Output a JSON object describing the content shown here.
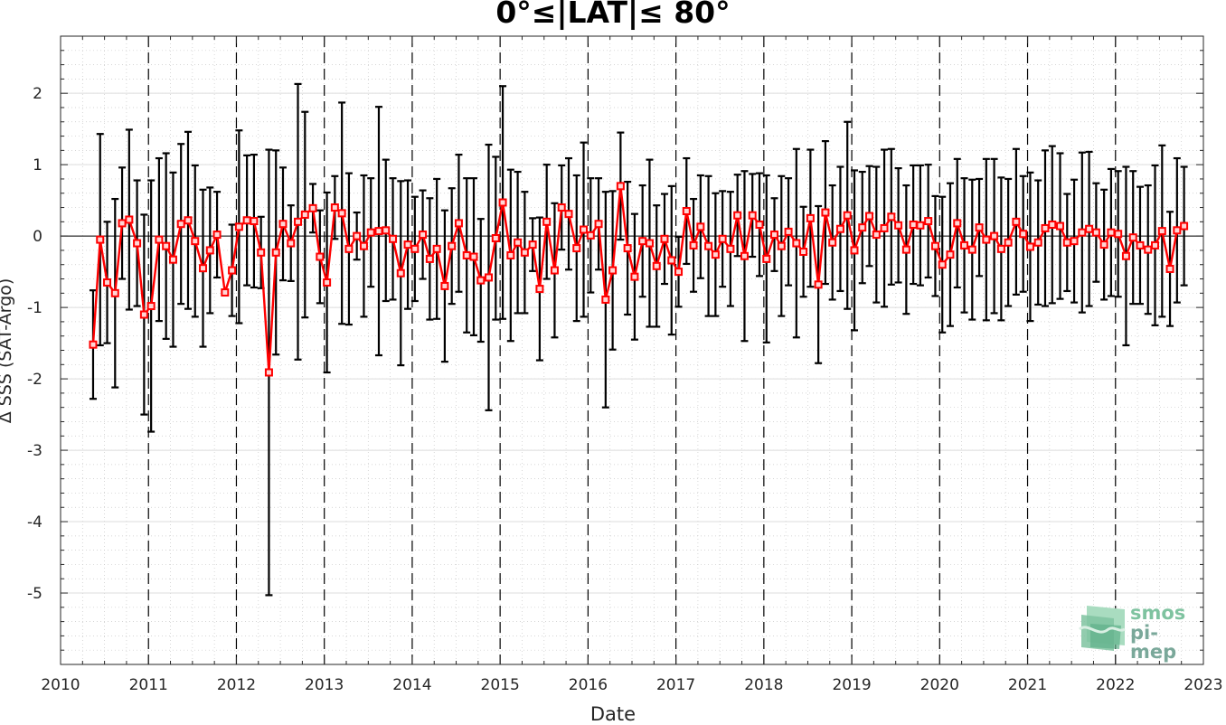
{
  "chart_data": {
    "type": "line",
    "title": "0°≤|LAT|≤ 80°",
    "xlabel": "Date",
    "ylabel": "Δ SSS (SAT-Argo)",
    "xlim": [
      2010,
      2023
    ],
    "ylim": [
      -6,
      2.8
    ],
    "xticks": [
      "2010",
      "2011",
      "2012",
      "2013",
      "2014",
      "2015",
      "2016",
      "2017",
      "2018",
      "2019",
      "2020",
      "2021",
      "2022",
      "2023"
    ],
    "yticks": [
      "2",
      "1",
      "0",
      "-1",
      "-2",
      "-3",
      "-4",
      "-5"
    ],
    "ytick_values": [
      2,
      1,
      0,
      -1,
      -2,
      -3,
      -4,
      -5
    ],
    "grid": "on",
    "year_lines": "dashed",
    "series": [
      {
        "color": "#ff0000",
        "marker": "square",
        "errorbar_color": "#000000",
        "x": [
          2010.37,
          2010.45,
          2010.53,
          2010.62,
          2010.7,
          2010.78,
          2010.87,
          2010.95,
          2011.03,
          2011.12,
          2011.2,
          2011.28,
          2011.37,
          2011.45,
          2011.53,
          2011.62,
          2011.7,
          2011.78,
          2011.87,
          2011.95,
          2012.03,
          2012.12,
          2012.2,
          2012.28,
          2012.37,
          2012.45,
          2012.53,
          2012.62,
          2012.7,
          2012.78,
          2012.87,
          2012.95,
          2013.03,
          2013.12,
          2013.2,
          2013.28,
          2013.37,
          2013.45,
          2013.53,
          2013.62,
          2013.7,
          2013.78,
          2013.87,
          2013.95,
          2014.03,
          2014.12,
          2014.2,
          2014.28,
          2014.37,
          2014.45,
          2014.53,
          2014.62,
          2014.7,
          2014.78,
          2014.87,
          2014.95,
          2015.03,
          2015.12,
          2015.2,
          2015.28,
          2015.37,
          2015.45,
          2015.53,
          2015.62,
          2015.7,
          2015.78,
          2015.87,
          2015.95,
          2016.03,
          2016.12,
          2016.2,
          2016.28,
          2016.37,
          2016.45,
          2016.53,
          2016.62,
          2016.7,
          2016.78,
          2016.87,
          2016.95,
          2017.03,
          2017.12,
          2017.2,
          2017.28,
          2017.37,
          2017.45,
          2017.53,
          2017.62,
          2017.7,
          2017.78,
          2017.87,
          2017.95,
          2018.03,
          2018.12,
          2018.2,
          2018.28,
          2018.37,
          2018.45,
          2018.53,
          2018.62,
          2018.7,
          2018.78,
          2018.87,
          2018.95,
          2019.03,
          2019.12,
          2019.2,
          2019.28,
          2019.37,
          2019.45,
          2019.53,
          2019.62,
          2019.7,
          2019.78,
          2019.87,
          2019.95,
          2020.03,
          2020.12,
          2020.2,
          2020.28,
          2020.37,
          2020.45,
          2020.53,
          2020.62,
          2020.7,
          2020.78,
          2020.87,
          2020.95,
          2021.03,
          2021.12,
          2021.2,
          2021.28,
          2021.37,
          2021.45,
          2021.53,
          2021.62,
          2021.7,
          2021.78,
          2021.87,
          2021.95,
          2022.03,
          2022.12,
          2022.2,
          2022.28,
          2022.37,
          2022.45,
          2022.53,
          2022.62,
          2022.7,
          2022.78
        ],
        "y": [
          -1.52,
          -0.05,
          -0.65,
          -0.8,
          0.18,
          0.23,
          -0.1,
          -1.1,
          -0.98,
          -0.05,
          -0.14,
          -0.33,
          0.17,
          0.22,
          -0.07,
          -0.45,
          -0.2,
          0.02,
          -0.79,
          -0.48,
          0.13,
          0.22,
          0.21,
          -0.23,
          -1.91,
          -0.23,
          0.17,
          -0.1,
          0.2,
          0.3,
          0.39,
          -0.29,
          -0.65,
          0.4,
          0.32,
          -0.18,
          0.0,
          -0.14,
          0.05,
          0.07,
          0.08,
          -0.04,
          -0.52,
          -0.12,
          -0.18,
          0.02,
          -0.32,
          -0.18,
          -0.7,
          -0.14,
          0.18,
          -0.27,
          -0.29,
          -0.62,
          -0.58,
          -0.03,
          0.47,
          -0.27,
          -0.09,
          -0.23,
          -0.12,
          -0.74,
          0.2,
          -0.48,
          0.4,
          0.31,
          -0.17,
          0.09,
          0.01,
          0.17,
          -0.89,
          -0.48,
          0.7,
          -0.17,
          -0.57,
          -0.07,
          -0.1,
          -0.42,
          -0.04,
          -0.34,
          -0.5,
          0.35,
          -0.13,
          0.13,
          -0.14,
          -0.26,
          -0.04,
          -0.18,
          0.29,
          -0.28,
          0.29,
          0.16,
          -0.32,
          0.02,
          -0.14,
          0.06,
          -0.1,
          -0.22,
          0.25,
          -0.68,
          0.33,
          -0.09,
          0.1,
          0.29,
          -0.2,
          0.12,
          0.28,
          0.02,
          0.11,
          0.27,
          0.15,
          -0.19,
          0.16,
          0.15,
          0.21,
          -0.14,
          -0.4,
          -0.26,
          0.18,
          -0.13,
          -0.19,
          0.12,
          -0.05,
          0.0,
          -0.18,
          -0.09,
          0.2,
          0.03,
          -0.15,
          -0.09,
          0.11,
          0.16,
          0.14,
          -0.09,
          -0.07,
          0.05,
          0.1,
          0.05,
          -0.12,
          0.05,
          0.03,
          -0.28,
          -0.02,
          -0.13,
          -0.19,
          -0.13,
          0.07,
          -0.46,
          0.08,
          0.14
        ],
        "err": [
          0.76,
          1.48,
          0.85,
          1.32,
          0.78,
          1.26,
          0.88,
          1.4,
          1.76,
          1.14,
          1.3,
          1.22,
          1.12,
          1.24,
          1.06,
          1.1,
          0.88,
          0.6,
          0.0,
          0.64,
          1.35,
          0.91,
          0.93,
          0.5,
          3.12,
          1.43,
          0.79,
          0.53,
          1.93,
          1.44,
          0.34,
          0.65,
          1.26,
          0.44,
          1.55,
          1.06,
          0.33,
          0.99,
          0.76,
          1.74,
          0.99,
          0.85,
          1.29,
          0.9,
          0.73,
          0.62,
          0.85,
          0.98,
          1.06,
          0.81,
          0.96,
          1.08,
          1.1,
          0.86,
          1.86,
          1.14,
          1.63,
          1.2,
          0.99,
          0.85,
          0.37,
          1.0,
          0.8,
          0.94,
          0.59,
          0.78,
          1.02,
          1.22,
          0.8,
          0.64,
          1.51,
          1.11,
          0.75,
          0.93,
          0.88,
          0.78,
          1.17,
          0.85,
          0.63,
          1.04,
          0.49,
          0.74,
          0.65,
          0.72,
          0.98,
          0.86,
          0.67,
          0.8,
          0.57,
          1.19,
          0.58,
          0.72,
          1.17,
          0.51,
          0.98,
          0.75,
          1.32,
          0.63,
          0.96,
          1.1,
          1.0,
          0.8,
          0.87,
          1.31,
          1.12,
          0.78,
          0.7,
          0.95,
          1.1,
          0.95,
          0.8,
          0.9,
          0.83,
          0.84,
          0.79,
          0.7,
          0.95,
          1.0,
          0.9,
          0.94,
          0.98,
          0.68,
          1.13,
          1.08,
          1.0,
          0.89,
          1.02,
          0.81,
          1.04,
          0.87,
          1.09,
          1.1,
          1.02,
          0.68,
          0.86,
          1.12,
          1.08,
          0.69,
          0.77,
          0.89,
          0.88,
          1.25,
          0.93,
          0.82,
          0.9,
          1.12,
          1.2,
          0.8,
          1.01,
          0.83
        ]
      }
    ]
  },
  "logo": {
    "line1": "smos",
    "line2": "pi-mep"
  }
}
